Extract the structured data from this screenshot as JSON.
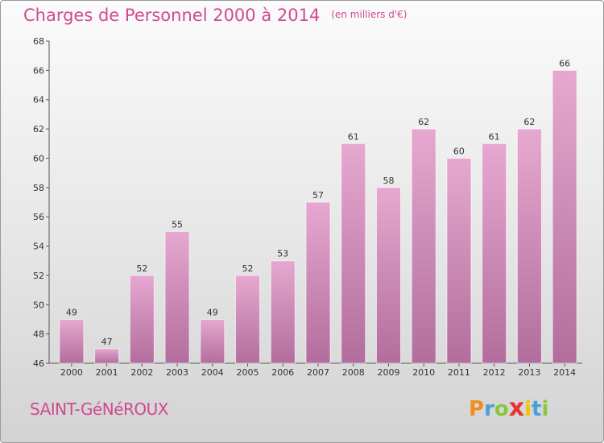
{
  "header": {
    "title": "Charges de Personnel 2000 à 2014",
    "unit": "(en milliers d'€)"
  },
  "footer": {
    "commune": "SAINT-GéNéROUX",
    "logo_text": "Proxiti"
  },
  "colors": {
    "title": "#d04a93",
    "bar_top": "#e6a8d0",
    "bar_bottom": "#b26d9c",
    "axis": "#555555"
  },
  "chart_data": {
    "type": "bar",
    "title": "Charges de Personnel 2000 à 2014",
    "subtitle": "(en milliers d'€)",
    "xlabel": "",
    "ylabel": "",
    "categories": [
      "2000",
      "2001",
      "2002",
      "2003",
      "2004",
      "2005",
      "2006",
      "2007",
      "2008",
      "2009",
      "2010",
      "2011",
      "2012",
      "2013",
      "2014"
    ],
    "values": [
      49,
      47,
      52,
      55,
      49,
      52,
      53,
      57,
      61,
      58,
      62,
      60,
      61,
      62,
      66
    ],
    "ylim": [
      46,
      68
    ],
    "yticks": [
      46,
      48,
      50,
      52,
      54,
      56,
      58,
      60,
      62,
      64,
      66,
      68
    ],
    "grid": false,
    "legend": "none"
  }
}
